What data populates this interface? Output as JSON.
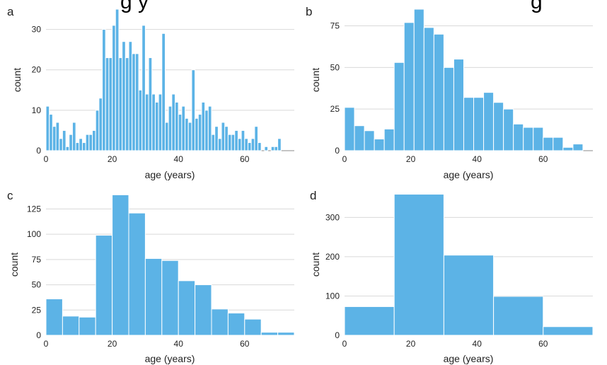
{
  "figure": {
    "title_fragment_left": "g y",
    "title_fragment_right": "g",
    "bar_color": "#5cb3e6",
    "grid_color": "#d9d9d9"
  },
  "chart_data": [
    {
      "type": "bar",
      "panel": "a",
      "xlabel": "age (years)",
      "ylabel": "count",
      "xlim": [
        0,
        75
      ],
      "ylim": [
        0,
        35
      ],
      "xticks": [
        0,
        20,
        40,
        60
      ],
      "yticks": [
        0,
        10,
        20,
        30
      ],
      "grid": "horizontal",
      "bins": [
        {
          "x0": 0,
          "x1": 1,
          "value": 11
        },
        {
          "x0": 1,
          "x1": 2,
          "value": 9
        },
        {
          "x0": 2,
          "x1": 3,
          "value": 6
        },
        {
          "x0": 3,
          "x1": 4,
          "value": 7
        },
        {
          "x0": 4,
          "x1": 5,
          "value": 3
        },
        {
          "x0": 5,
          "x1": 6,
          "value": 5
        },
        {
          "x0": 6,
          "x1": 7,
          "value": 1
        },
        {
          "x0": 7,
          "x1": 8,
          "value": 4
        },
        {
          "x0": 8,
          "x1": 9,
          "value": 7
        },
        {
          "x0": 9,
          "x1": 10,
          "value": 2
        },
        {
          "x0": 10,
          "x1": 11,
          "value": 3
        },
        {
          "x0": 11,
          "x1": 12,
          "value": 2
        },
        {
          "x0": 12,
          "x1": 13,
          "value": 4
        },
        {
          "x0": 13,
          "x1": 14,
          "value": 4
        },
        {
          "x0": 14,
          "x1": 15,
          "value": 5
        },
        {
          "x0": 15,
          "x1": 16,
          "value": 10
        },
        {
          "x0": 16,
          "x1": 17,
          "value": 13
        },
        {
          "x0": 17,
          "x1": 18,
          "value": 30
        },
        {
          "x0": 18,
          "x1": 19,
          "value": 23
        },
        {
          "x0": 19,
          "x1": 20,
          "value": 23
        },
        {
          "x0": 20,
          "x1": 21,
          "value": 31
        },
        {
          "x0": 21,
          "x1": 22,
          "value": 35
        },
        {
          "x0": 22,
          "x1": 23,
          "value": 23
        },
        {
          "x0": 23,
          "x1": 24,
          "value": 27
        },
        {
          "x0": 24,
          "x1": 25,
          "value": 23
        },
        {
          "x0": 25,
          "x1": 26,
          "value": 27
        },
        {
          "x0": 26,
          "x1": 27,
          "value": 24
        },
        {
          "x0": 27,
          "x1": 28,
          "value": 24
        },
        {
          "x0": 28,
          "x1": 29,
          "value": 15
        },
        {
          "x0": 29,
          "x1": 30,
          "value": 31
        },
        {
          "x0": 30,
          "x1": 31,
          "value": 14
        },
        {
          "x0": 31,
          "x1": 32,
          "value": 23
        },
        {
          "x0": 32,
          "x1": 33,
          "value": 14
        },
        {
          "x0": 33,
          "x1": 34,
          "value": 12
        },
        {
          "x0": 34,
          "x1": 35,
          "value": 14
        },
        {
          "x0": 35,
          "x1": 36,
          "value": 29
        },
        {
          "x0": 36,
          "x1": 37,
          "value": 7
        },
        {
          "x0": 37,
          "x1": 38,
          "value": 11
        },
        {
          "x0": 38,
          "x1": 39,
          "value": 14
        },
        {
          "x0": 39,
          "x1": 40,
          "value": 12
        },
        {
          "x0": 40,
          "x1": 41,
          "value": 9
        },
        {
          "x0": 41,
          "x1": 42,
          "value": 11
        },
        {
          "x0": 42,
          "x1": 43,
          "value": 8
        },
        {
          "x0": 43,
          "x1": 44,
          "value": 7
        },
        {
          "x0": 44,
          "x1": 45,
          "value": 20
        },
        {
          "x0": 45,
          "x1": 46,
          "value": 8
        },
        {
          "x0": 46,
          "x1": 47,
          "value": 9
        },
        {
          "x0": 47,
          "x1": 48,
          "value": 12
        },
        {
          "x0": 48,
          "x1": 49,
          "value": 10
        },
        {
          "x0": 49,
          "x1": 50,
          "value": 11
        },
        {
          "x0": 50,
          "x1": 51,
          "value": 4
        },
        {
          "x0": 51,
          "x1": 52,
          "value": 6
        },
        {
          "x0": 52,
          "x1": 53,
          "value": 3
        },
        {
          "x0": 53,
          "x1": 54,
          "value": 7
        },
        {
          "x0": 54,
          "x1": 55,
          "value": 6
        },
        {
          "x0": 55,
          "x1": 56,
          "value": 4
        },
        {
          "x0": 56,
          "x1": 57,
          "value": 4
        },
        {
          "x0": 57,
          "x1": 58,
          "value": 5
        },
        {
          "x0": 58,
          "x1": 59,
          "value": 3
        },
        {
          "x0": 59,
          "x1": 60,
          "value": 5
        },
        {
          "x0": 60,
          "x1": 61,
          "value": 3
        },
        {
          "x0": 61,
          "x1": 62,
          "value": 2
        },
        {
          "x0": 62,
          "x1": 63,
          "value": 3
        },
        {
          "x0": 63,
          "x1": 64,
          "value": 6
        },
        {
          "x0": 64,
          "x1": 65,
          "value": 2
        },
        {
          "x0": 65,
          "x1": 66,
          "value": 0
        },
        {
          "x0": 66,
          "x1": 67,
          "value": 1
        },
        {
          "x0": 67,
          "x1": 68,
          "value": 0
        },
        {
          "x0": 68,
          "x1": 69,
          "value": 1
        },
        {
          "x0": 69,
          "x1": 70,
          "value": 1
        },
        {
          "x0": 70,
          "x1": 71,
          "value": 3
        }
      ]
    },
    {
      "type": "bar",
      "panel": "b",
      "xlabel": "age (years)",
      "ylabel": "count",
      "xlim": [
        0,
        75
      ],
      "ylim": [
        0,
        85
      ],
      "xticks": [
        0,
        20,
        40,
        60
      ],
      "yticks": [
        0,
        25,
        50,
        75
      ],
      "grid": "horizontal",
      "bins": [
        {
          "x0": 0,
          "x1": 3,
          "value": 26
        },
        {
          "x0": 3,
          "x1": 6,
          "value": 15
        },
        {
          "x0": 6,
          "x1": 9,
          "value": 12
        },
        {
          "x0": 9,
          "x1": 12,
          "value": 7
        },
        {
          "x0": 12,
          "x1": 15,
          "value": 13
        },
        {
          "x0": 15,
          "x1": 18,
          "value": 53
        },
        {
          "x0": 18,
          "x1": 21,
          "value": 77
        },
        {
          "x0": 21,
          "x1": 24,
          "value": 85
        },
        {
          "x0": 24,
          "x1": 27,
          "value": 74
        },
        {
          "x0": 27,
          "x1": 30,
          "value": 70
        },
        {
          "x0": 30,
          "x1": 33,
          "value": 50
        },
        {
          "x0": 33,
          "x1": 36,
          "value": 55
        },
        {
          "x0": 36,
          "x1": 39,
          "value": 32
        },
        {
          "x0": 39,
          "x1": 42,
          "value": 32
        },
        {
          "x0": 42,
          "x1": 45,
          "value": 35
        },
        {
          "x0": 45,
          "x1": 48,
          "value": 29
        },
        {
          "x0": 48,
          "x1": 51,
          "value": 25
        },
        {
          "x0": 51,
          "x1": 54,
          "value": 16
        },
        {
          "x0": 54,
          "x1": 57,
          "value": 14
        },
        {
          "x0": 57,
          "x1": 60,
          "value": 14
        },
        {
          "x0": 60,
          "x1": 63,
          "value": 8
        },
        {
          "x0": 63,
          "x1": 66,
          "value": 8
        },
        {
          "x0": 66,
          "x1": 69,
          "value": 2
        },
        {
          "x0": 69,
          "x1": 72,
          "value": 4
        }
      ]
    },
    {
      "type": "bar",
      "panel": "c",
      "xlabel": "age (years)",
      "ylabel": "count",
      "xlim": [
        0,
        75
      ],
      "ylim": [
        0,
        140
      ],
      "xticks": [
        0,
        20,
        40,
        60
      ],
      "yticks": [
        0,
        25,
        50,
        75,
        100,
        125
      ],
      "grid": "horizontal",
      "bins": [
        {
          "x0": 0,
          "x1": 5,
          "value": 36
        },
        {
          "x0": 5,
          "x1": 10,
          "value": 19
        },
        {
          "x0": 10,
          "x1": 15,
          "value": 18
        },
        {
          "x0": 15,
          "x1": 20,
          "value": 99
        },
        {
          "x0": 20,
          "x1": 25,
          "value": 139
        },
        {
          "x0": 25,
          "x1": 30,
          "value": 121
        },
        {
          "x0": 30,
          "x1": 35,
          "value": 76
        },
        {
          "x0": 35,
          "x1": 40,
          "value": 74
        },
        {
          "x0": 40,
          "x1": 45,
          "value": 54
        },
        {
          "x0": 45,
          "x1": 50,
          "value": 50
        },
        {
          "x0": 50,
          "x1": 55,
          "value": 26
        },
        {
          "x0": 55,
          "x1": 60,
          "value": 22
        },
        {
          "x0": 60,
          "x1": 65,
          "value": 16
        },
        {
          "x0": 65,
          "x1": 70,
          "value": 3
        },
        {
          "x0": 70,
          "x1": 75,
          "value": 3
        }
      ]
    },
    {
      "type": "bar",
      "panel": "d",
      "xlabel": "age (years)",
      "ylabel": "count",
      "xlim": [
        0,
        75
      ],
      "ylim": [
        0,
        360
      ],
      "xticks": [
        0,
        20,
        40,
        60
      ],
      "yticks": [
        0,
        100,
        200,
        300
      ],
      "grid": "horizontal",
      "bins": [
        {
          "x0": 0,
          "x1": 15,
          "value": 73
        },
        {
          "x0": 15,
          "x1": 30,
          "value": 359
        },
        {
          "x0": 30,
          "x1": 45,
          "value": 204
        },
        {
          "x0": 45,
          "x1": 60,
          "value": 99
        },
        {
          "x0": 60,
          "x1": 75,
          "value": 22
        }
      ]
    }
  ]
}
